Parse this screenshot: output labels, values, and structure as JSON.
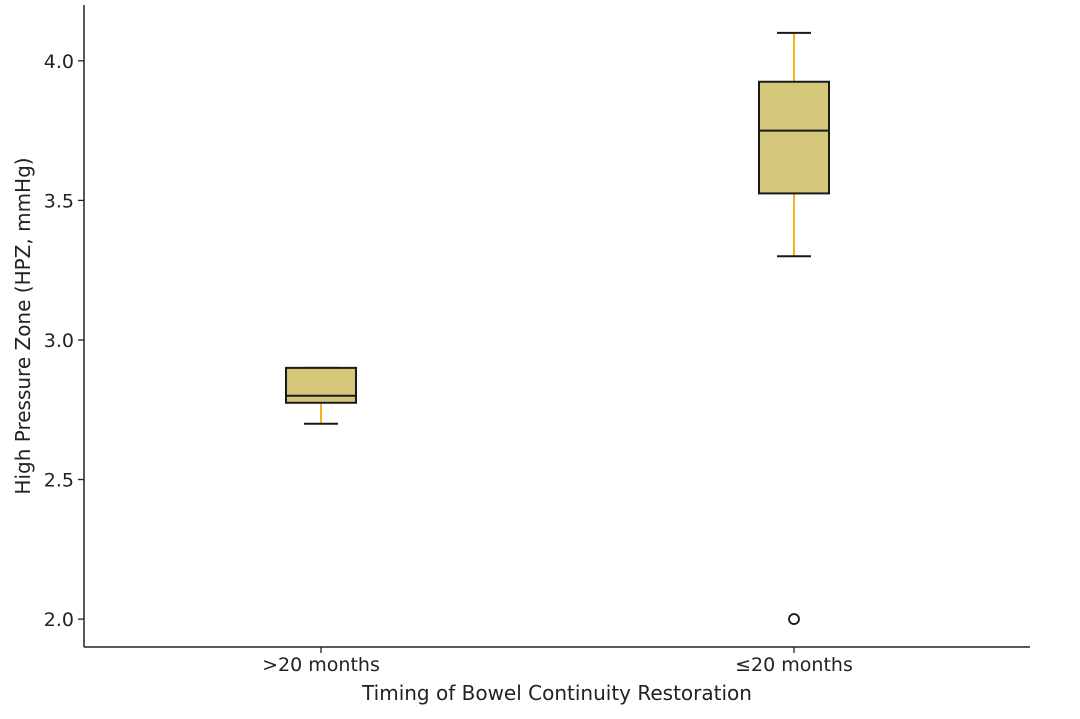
{
  "chart_data": {
    "type": "box",
    "title": "",
    "xlabel": "Timing of Bowel Continuity Restoration",
    "ylabel": "High Pressure Zone (HPZ, mmHg)",
    "ylim": [
      1.9,
      4.2
    ],
    "yticks": [
      "2.0",
      "2.5",
      "3.0",
      "3.5",
      "4.0"
    ],
    "categories": [
      ">20 months",
      "≤20 months"
    ],
    "boxes": [
      {
        "category": ">20 months",
        "whisker_low": 2.7,
        "q1": 2.775,
        "median": 2.8,
        "q3": 2.9,
        "whisker_high": 2.9,
        "outliers": []
      },
      {
        "category": "≤20 months",
        "whisker_low": 3.3,
        "q1": 3.525,
        "median": 3.75,
        "q3": 3.925,
        "whisker_high": 4.1,
        "outliers": [
          2.0
        ]
      }
    ],
    "colors": {
      "box_fill": "#d4c77a",
      "whisker": "#f5b21a",
      "edge": "#1a1a1a"
    },
    "grid": false
  }
}
